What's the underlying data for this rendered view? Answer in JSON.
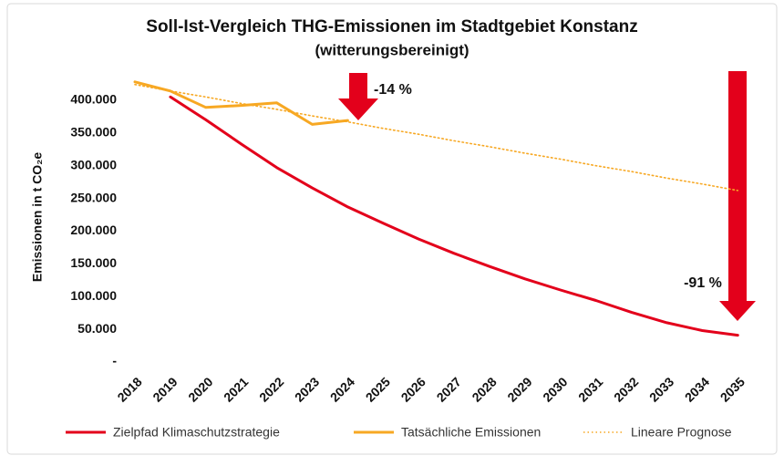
{
  "chart_data": {
    "type": "line",
    "title": "Soll-Ist-Vergleich THG-Emissionen im Stadtgebiet Konstanz",
    "subtitle": "(witterungsbereinigt)",
    "y_label": "Emissionen in t CO₂e",
    "categories": [
      "2018",
      "2019",
      "2020",
      "2021",
      "2022",
      "2023",
      "2024",
      "2025",
      "2026",
      "2027",
      "2028",
      "2029",
      "2030",
      "2031",
      "2032",
      "2033",
      "2034",
      "2035"
    ],
    "series": [
      {
        "name": "Zielpfad Klimaschutzstrategie",
        "color": "#e3001b",
        "style": "solid",
        "values": [
          null,
          405000,
          370000,
          333000,
          297000,
          266000,
          237000,
          212000,
          188000,
          166000,
          146000,
          127000,
          110000,
          94000,
          76000,
          60000,
          48000,
          41000
        ]
      },
      {
        "name": "Tatsächliche Emissionen",
        "color": "#f7a823",
        "style": "solid",
        "values": [
          428000,
          414000,
          389000,
          392000,
          396000,
          363000,
          369000,
          null,
          null,
          null,
          null,
          null,
          null,
          null,
          null,
          null,
          null,
          null
        ]
      },
      {
        "name": "Lineare Prognose",
        "color": "#f7a823",
        "style": "dotted",
        "values": [
          424000,
          414000,
          405000,
          395000,
          386000,
          376000,
          367000,
          357000,
          348000,
          338000,
          329000,
          319000,
          310000,
          300000,
          291000,
          281000,
          272000,
          262000
        ]
      }
    ],
    "annotations": [
      "-14 %",
      "-91 %"
    ],
    "ylim": [
      0,
      450000
    ],
    "yticks": [
      {
        "value": 0,
        "label": "-"
      },
      {
        "value": 50000,
        "label": "50.000"
      },
      {
        "value": 100000,
        "label": "100.000"
      },
      {
        "value": 150000,
        "label": "150.000"
      },
      {
        "value": 200000,
        "label": "200.000"
      },
      {
        "value": 250000,
        "label": "250.000"
      },
      {
        "value": 300000,
        "label": "300.000"
      },
      {
        "value": 350000,
        "label": "350.000"
      },
      {
        "value": 400000,
        "label": "400.000"
      }
    ],
    "grid": false
  }
}
